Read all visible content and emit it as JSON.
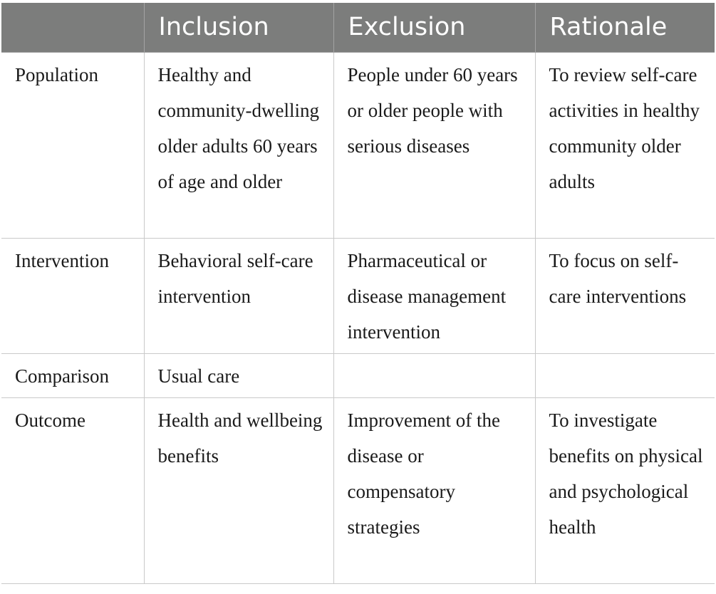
{
  "table": {
    "headers": [
      "",
      "Inclusion",
      "Exclusion",
      "Rationale"
    ],
    "rows": [
      {
        "label": "Population",
        "inclusion": "Healthy and community-dwelling older adults 60 years of age and older",
        "exclusion": "People under 60 years or older people with serious diseases",
        "rationale": "To review self-care activities in healthy community older adults"
      },
      {
        "label": "Intervention",
        "inclusion": "Behavioral self-care intervention",
        "exclusion": "Pharmaceutical or disease management intervention",
        "rationale": "To focus on self-care interventions"
      },
      {
        "label": "Comparison",
        "inclusion": "Usual care",
        "exclusion": "",
        "rationale": ""
      },
      {
        "label": "Outcome",
        "inclusion": "Health and wellbeing benefits",
        "exclusion": "Improvement of the disease or compensatory strategies",
        "rationale": "To investigate benefits on physical and psychological health"
      }
    ]
  },
  "colors": {
    "header_background": "#7c7d7c",
    "header_text": "#ffffff",
    "grid_line": "#c9c9c9"
  }
}
